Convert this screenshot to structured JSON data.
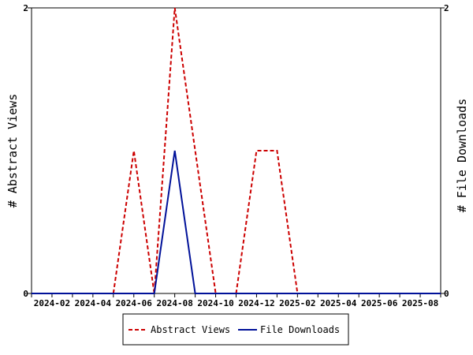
{
  "chart_data": {
    "type": "line",
    "x": [
      "2024-01",
      "2024-02",
      "2024-03",
      "2024-04",
      "2024-05",
      "2024-06",
      "2024-07",
      "2024-08",
      "2024-09",
      "2024-10",
      "2024-11",
      "2024-12",
      "2025-01",
      "2025-02",
      "2025-03",
      "2025-04",
      "2025-05",
      "2025-06",
      "2025-07",
      "2025-08",
      "2025-09"
    ],
    "x_tick_labels": [
      "2024-02",
      "2024-04",
      "2024-06",
      "2024-08",
      "2024-10",
      "2024-12",
      "2025-02",
      "2025-04",
      "2025-06",
      "2025-08"
    ],
    "y_left_ticks": [
      "0",
      "2"
    ],
    "y_right_ticks": [
      "0",
      "2"
    ],
    "ylim": [
      0,
      2
    ],
    "ylabel_left": "# Abstract Views",
    "ylabel_right": "# File Downloads",
    "grid": false,
    "legend_position": "bottom-center",
    "series": [
      {
        "name": "Abstract Views",
        "axis": "left",
        "style": "dashed",
        "color": "#cc0000",
        "values": [
          0,
          0,
          0,
          0,
          0,
          1,
          0,
          2,
          1,
          0,
          0,
          1,
          1,
          0,
          0,
          0,
          0,
          0,
          0,
          0,
          0
        ]
      },
      {
        "name": "File Downloads",
        "axis": "right",
        "style": "solid",
        "color": "#001199",
        "values": [
          0,
          0,
          0,
          0,
          0,
          0,
          0,
          1,
          0,
          0,
          0,
          0,
          0,
          0,
          0,
          0,
          0,
          0,
          0,
          0,
          0
        ]
      }
    ]
  }
}
